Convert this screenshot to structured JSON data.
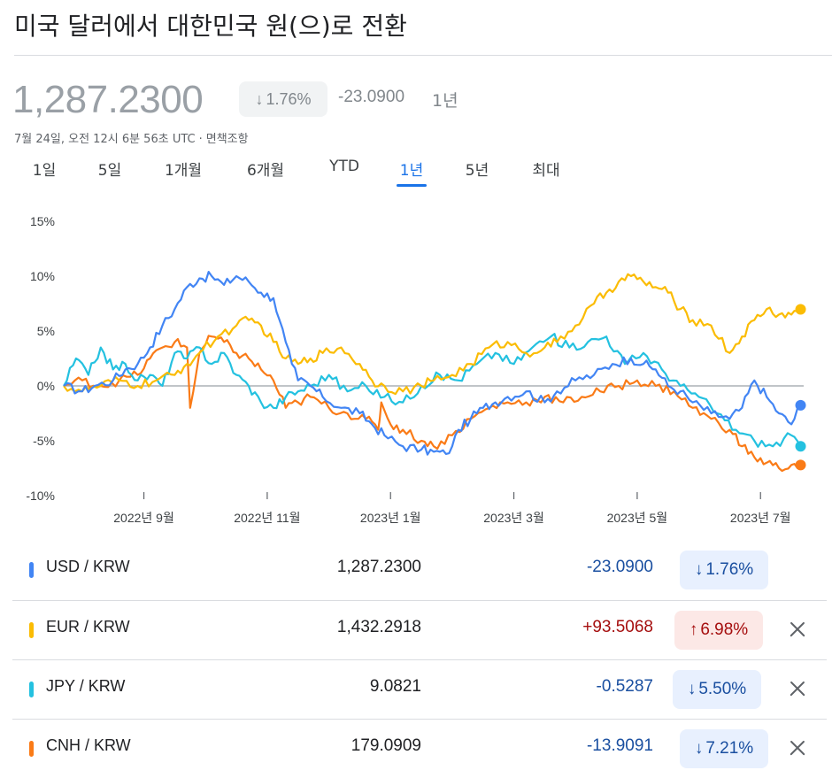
{
  "header": {
    "title": "미국 달러에서 대한민국 원(으)로 전환",
    "price": "1,287.2300",
    "percent_change": "1.76%",
    "percent_arrow": "↓",
    "change": "-23.0900",
    "period": "1년",
    "timestamp": "7월 24일, 오전 12시 6분 56초 UTC",
    "timestamp_sep": "·",
    "disclaimer": "면책조항"
  },
  "tabs": [
    {
      "label": "1일"
    },
    {
      "label": "5일"
    },
    {
      "label": "1개월"
    },
    {
      "label": "6개월"
    },
    {
      "label": "YTD"
    },
    {
      "label": "1년"
    },
    {
      "label": "5년"
    },
    {
      "label": "최대"
    }
  ],
  "active_tab": 5,
  "colors": {
    "usd": "#4285f4",
    "eur": "#fbbc04",
    "jpy": "#24c1e0",
    "cnh": "#fa7b17",
    "zero_line": "#9aa0a6",
    "grid": "#e8eaed"
  },
  "rows": [
    {
      "pair": "USD / KRW",
      "rate": "1,287.2300",
      "change": "-23.0900",
      "arrow": "↓",
      "percent": "1.76%",
      "dir": "neg",
      "removable": false
    },
    {
      "pair": "EUR / KRW",
      "rate": "1,432.2918",
      "change": "+93.5068",
      "arrow": "↑",
      "percent": "6.98%",
      "dir": "pos",
      "removable": true
    },
    {
      "pair": "JPY / KRW",
      "rate": "9.0821",
      "change": "-0.5287",
      "arrow": "↓",
      "percent": "5.50%",
      "dir": "neg",
      "removable": true
    },
    {
      "pair": "CNH / KRW",
      "rate": "179.0909",
      "change": "-13.9091",
      "arrow": "↓",
      "percent": "7.21%",
      "dir": "neg",
      "removable": true
    }
  ],
  "chart_data": {
    "type": "line",
    "y_unit": "%",
    "ylim": [
      -10,
      15
    ],
    "y_ticks": [
      15,
      10,
      5,
      0,
      -5,
      -10
    ],
    "y_tick_labels": [
      "15%",
      "10%",
      "5%",
      "0%",
      "-5%",
      "-10%"
    ],
    "x_ticks": [
      {
        "label": "2022년 9월",
        "at": 1.3
      },
      {
        "label": "2022년 11월",
        "at": 3.3
      },
      {
        "label": "2023년 1월",
        "at": 5.3
      },
      {
        "label": "2023년 3월",
        "at": 7.3
      },
      {
        "label": "2023년 5월",
        "at": 9.3
      },
      {
        "label": "2023년 7월",
        "at": 11.3
      }
    ],
    "xlim": [
      0,
      12
    ],
    "grid": false,
    "zero_line": true,
    "series": [
      {
        "key": "usd",
        "x": [
          0,
          0.3,
          0.5,
          0.8,
          1.0,
          1.2,
          1.4,
          1.6,
          1.8,
          2.0,
          2.2,
          2.4,
          2.6,
          2.8,
          3.0,
          3.2,
          3.4,
          3.5,
          3.6,
          3.7,
          3.8,
          4.0,
          4.2,
          4.5,
          4.8,
          5.0,
          5.2,
          5.5,
          5.8,
          6.0,
          6.2,
          6.3,
          6.4,
          6.6,
          6.8,
          7.0,
          7.2,
          7.5,
          7.8,
          8.0,
          8.3,
          8.6,
          8.9,
          9.2,
          9.4,
          9.6,
          9.8,
          10.0,
          10.2,
          10.5,
          10.8,
          11.0,
          11.2,
          11.4,
          11.6,
          11.8,
          11.95
        ],
        "y": [
          0,
          -0.5,
          0,
          0.5,
          1.5,
          2.0,
          3.5,
          5.5,
          7.0,
          9.0,
          9.8,
          10.0,
          9.2,
          10.0,
          9.5,
          8.5,
          8.0,
          6.0,
          4.0,
          2.0,
          0.5,
          0,
          -1.0,
          -2.0,
          -2.5,
          -3.5,
          -4.5,
          -5.5,
          -5.8,
          -6.0,
          -6.2,
          -5.5,
          -4.0,
          -3.0,
          -2.0,
          -1.5,
          -1.0,
          -0.5,
          -1.5,
          -0.5,
          0.5,
          1.0,
          2.0,
          2.5,
          2.0,
          1.5,
          0,
          -0.5,
          -1.5,
          -2.5,
          -3.0,
          -2.0,
          0.5,
          -1.0,
          -2.5,
          -3.5,
          -1.76
        ]
      },
      {
        "key": "eur",
        "x": [
          0,
          0.3,
          0.6,
          0.9,
          1.2,
          1.5,
          1.8,
          2.0,
          2.2,
          2.5,
          2.8,
          3.0,
          3.2,
          3.4,
          3.6,
          3.8,
          4.0,
          4.2,
          4.5,
          4.8,
          5.0,
          5.2,
          5.5,
          5.8,
          6.0,
          6.3,
          6.6,
          6.9,
          7.2,
          7.5,
          7.8,
          8.0,
          8.3,
          8.6,
          8.8,
          9.0,
          9.2,
          9.4,
          9.6,
          9.8,
          10.0,
          10.2,
          10.5,
          10.8,
          11.0,
          11.2,
          11.4,
          11.6,
          11.8,
          11.95
        ],
        "y": [
          0,
          -0.5,
          0,
          0.5,
          0,
          0.5,
          1.0,
          2.0,
          3.0,
          4.5,
          5.5,
          6.0,
          5.5,
          4.0,
          2.5,
          2.0,
          2.5,
          3.0,
          3.5,
          2.0,
          0.5,
          0,
          -0.5,
          0,
          0.5,
          1.0,
          2.0,
          3.5,
          4.0,
          3.0,
          3.5,
          4.0,
          5.5,
          7.5,
          8.5,
          9.5,
          10.0,
          9.5,
          9.0,
          8.5,
          7.0,
          6.0,
          5.5,
          3.0,
          4.5,
          6.0,
          7.0,
          6.5,
          6.5,
          6.98
        ]
      },
      {
        "key": "jpy",
        "x": [
          0,
          0.2,
          0.4,
          0.6,
          0.8,
          1.0,
          1.2,
          1.4,
          1.6,
          1.8,
          2.0,
          2.2,
          2.4,
          2.6,
          2.8,
          3.0,
          3.2,
          3.4,
          3.6,
          3.8,
          4.0,
          4.3,
          4.6,
          4.9,
          5.2,
          5.5,
          5.8,
          6.1,
          6.4,
          6.7,
          7.0,
          7.3,
          7.6,
          7.9,
          8.2,
          8.5,
          8.8,
          9.1,
          9.4,
          9.7,
          10.0,
          10.3,
          10.6,
          10.9,
          11.2,
          11.5,
          11.8,
          11.95
        ],
        "y": [
          0,
          2.5,
          1.0,
          3.5,
          1.5,
          2.0,
          0.5,
          1.0,
          0,
          3.0,
          2.5,
          3.5,
          2.0,
          3.0,
          1.0,
          0,
          -1.5,
          -2.0,
          -1.0,
          -0.5,
          0,
          1.0,
          -0.5,
          0,
          -1.0,
          -1.5,
          0,
          1.0,
          0.5,
          2.0,
          3.0,
          2.0,
          3.5,
          4.5,
          3.5,
          4.0,
          4.5,
          2.0,
          3.0,
          1.5,
          0,
          -1.0,
          -2.5,
          -4.0,
          -5.0,
          -5.5,
          -4.5,
          -5.5
        ]
      },
      {
        "key": "cnh",
        "x": [
          0,
          0.3,
          0.6,
          0.9,
          1.2,
          1.4,
          1.6,
          1.8,
          2.0,
          2.05,
          2.2,
          2.4,
          2.6,
          2.8,
          3.0,
          3.2,
          3.4,
          3.6,
          3.8,
          4.0,
          4.3,
          4.6,
          4.9,
          5.1,
          5.15,
          5.3,
          5.5,
          5.8,
          6.0,
          6.3,
          6.6,
          6.9,
          7.2,
          7.5,
          7.8,
          8.1,
          8.4,
          8.7,
          9.0,
          9.3,
          9.6,
          9.9,
          10.2,
          10.5,
          10.8,
          11.0,
          11.2,
          11.4,
          11.6,
          11.8,
          11.95
        ],
        "y": [
          0,
          0.5,
          0,
          0.5,
          1.0,
          2.5,
          3.5,
          4.0,
          3.5,
          -2.0,
          3.0,
          4.5,
          4.0,
          3.0,
          2.5,
          1.5,
          0.5,
          -2.0,
          -1.5,
          -1.0,
          -2.0,
          -2.5,
          -3.0,
          -4.0,
          -1.5,
          -3.5,
          -4.0,
          -5.0,
          -5.5,
          -4.5,
          -3.0,
          -2.0,
          -1.5,
          -1.5,
          -1.0,
          -1.5,
          -1.0,
          -0.5,
          0,
          0.5,
          0,
          -0.5,
          -2.0,
          -3.0,
          -4.0,
          -5.5,
          -6.5,
          -7.0,
          -7.5,
          -7.2,
          -7.21
        ]
      }
    ]
  }
}
